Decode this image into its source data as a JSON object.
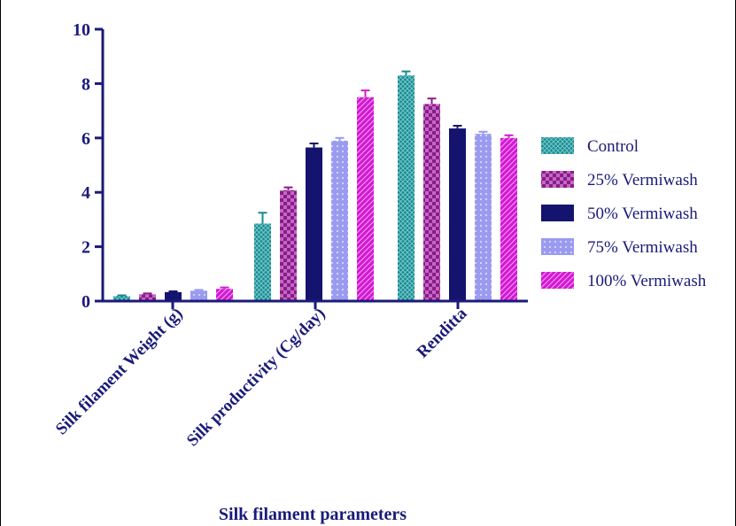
{
  "chart_data": {
    "type": "bar",
    "categories": [
      "Silk filament Weight (g)",
      "Silk productivity (Cg/day)",
      "Renditta"
    ],
    "series": [
      {
        "name": "Control",
        "values": [
          0.18,
          2.85,
          8.3
        ],
        "errors": [
          0.03,
          0.4,
          0.15
        ],
        "color": "#1a8a8f",
        "pattern": "crosshatch"
      },
      {
        "name": "25% Vermiwash",
        "values": [
          0.25,
          4.08,
          7.25
        ],
        "errors": [
          0.03,
          0.1,
          0.2
        ],
        "color": "#8c1a8c",
        "pattern": "checker"
      },
      {
        "name": "50% Vermiwash",
        "values": [
          0.33,
          5.65,
          6.35
        ],
        "errors": [
          0.03,
          0.15,
          0.1
        ],
        "color": "#14146e",
        "pattern": "solid"
      },
      {
        "name": "75% Vermiwash",
        "values": [
          0.38,
          5.9,
          6.15
        ],
        "errors": [
          0.03,
          0.1,
          0.08
        ],
        "color": "#9a9af0",
        "pattern": "dots"
      },
      {
        "name": "100% Vermiwash",
        "values": [
          0.45,
          7.5,
          6.0
        ],
        "errors": [
          0.05,
          0.25,
          0.1
        ],
        "color": "#d21ad2",
        "pattern": "diagonal"
      }
    ],
    "xlabel": "Silk filament parameters",
    "ylabel": "",
    "ylim": [
      0,
      10
    ],
    "yticks": [
      0,
      2,
      4,
      6,
      8,
      10
    ],
    "ytick_labels": [
      "0",
      "2",
      "4",
      "6",
      "8",
      "10"
    ],
    "legend_position": "right",
    "grid": false,
    "axis_color": "#1a1a7a"
  }
}
